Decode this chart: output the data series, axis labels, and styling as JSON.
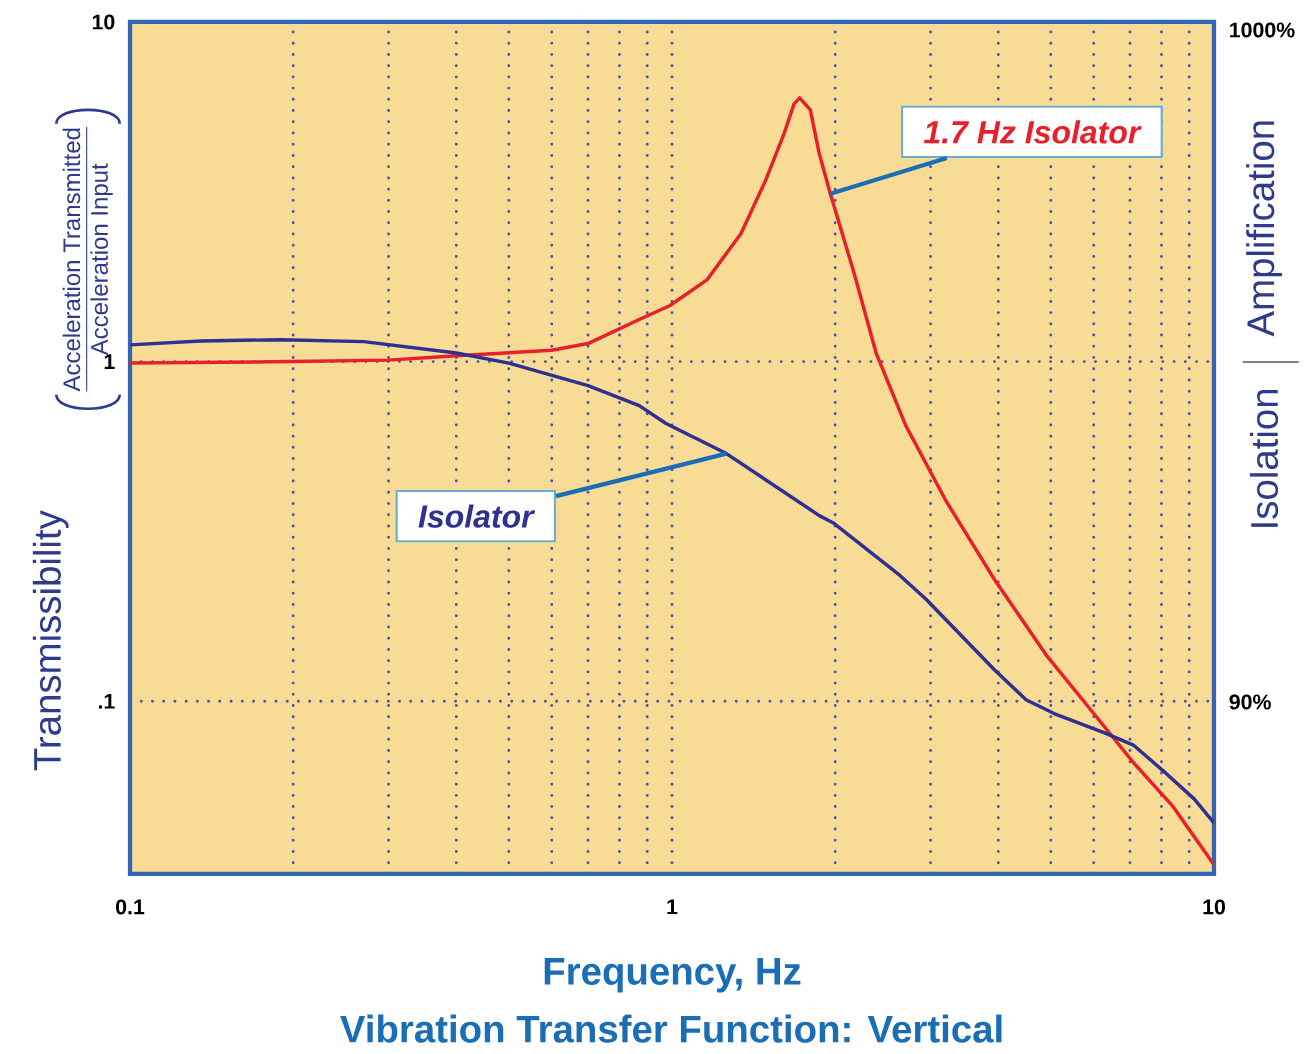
{
  "chart_data": {
    "type": "line",
    "title": "Vibration Transfer Function: Vertical",
    "xlabel": "Frequency, Hz",
    "ylabel": "Transmissibility",
    "annotations": [
      "Acceleration Transmitted",
      "Acceleration Input",
      "Amplification",
      "Isolation",
      "1000%",
      "90%"
    ],
    "log": "xy",
    "grid": true,
    "xlim": [
      0.1,
      10
    ],
    "xticks": [
      0.1,
      {
        "value": 0.2,
        "label": null
      },
      {
        "value": 0.3,
        "label": null
      },
      {
        "value": 0.4,
        "label": null
      },
      {
        "value": 0.5,
        "label": null
      },
      {
        "value": 0.6,
        "label": null
      },
      {
        "value": 0.7,
        "label": null
      },
      {
        "value": 0.8,
        "label": null
      },
      {
        "value": 0.9,
        "label": null
      },
      1,
      {
        "value": 2,
        "label": null
      },
      {
        "value": 3,
        "label": null
      },
      {
        "value": 4,
        "label": null
      },
      {
        "value": 5,
        "label": null
      },
      {
        "value": 6,
        "label": null
      },
      {
        "value": 7,
        "label": null
      },
      {
        "value": 8,
        "label": null
      },
      {
        "value": 9,
        "label": null
      },
      10
    ],
    "ylim": [
      0.031,
      10
    ],
    "yticks": [
      {
        "value": 0.1,
        "label": ".1"
      },
      1,
      10
    ],
    "series": [
      {
        "name": "1.7 Hz Isolator",
        "color": "#e8202a",
        "x": [
          0.1,
          0.2,
          0.3,
          0.4,
          0.6,
          0.7,
          0.87,
          0.99,
          1.16,
          1.34,
          1.49,
          1.61,
          1.68,
          1.72,
          1.8,
          1.87,
          1.96,
          2.17,
          2.38,
          2.7,
          3.2,
          3.93,
          4.9,
          6.0,
          7.1,
          8.4,
          10
        ],
        "values": [
          0.99,
          1.0,
          1.01,
          1.04,
          1.08,
          1.13,
          1.33,
          1.46,
          1.74,
          2.38,
          3.43,
          4.69,
          5.74,
          5.98,
          5.51,
          4.09,
          3.12,
          1.81,
          1.06,
          0.648,
          0.39,
          0.229,
          0.137,
          0.092,
          0.066,
          0.049,
          0.033
        ]
      },
      {
        "name": "Isolator",
        "color": "#2e3192",
        "x": [
          0.1,
          0.135,
          0.19,
          0.27,
          0.4,
          0.5,
          0.7,
          0.87,
          0.975,
          1.26,
          1.87,
          1.99,
          2.63,
          2.94,
          3.93,
          4.5,
          5.07,
          6.3,
          7.1,
          8.15,
          9.2,
          10
        ],
        "values": [
          1.12,
          1.15,
          1.16,
          1.145,
          1.06,
          0.99,
          0.85,
          0.742,
          0.657,
          0.536,
          0.352,
          0.334,
          0.235,
          0.2,
          0.124,
          0.101,
          0.092,
          0.0805,
          0.0743,
          0.0614,
          0.0515,
          0.0438
        ]
      }
    ]
  }
}
